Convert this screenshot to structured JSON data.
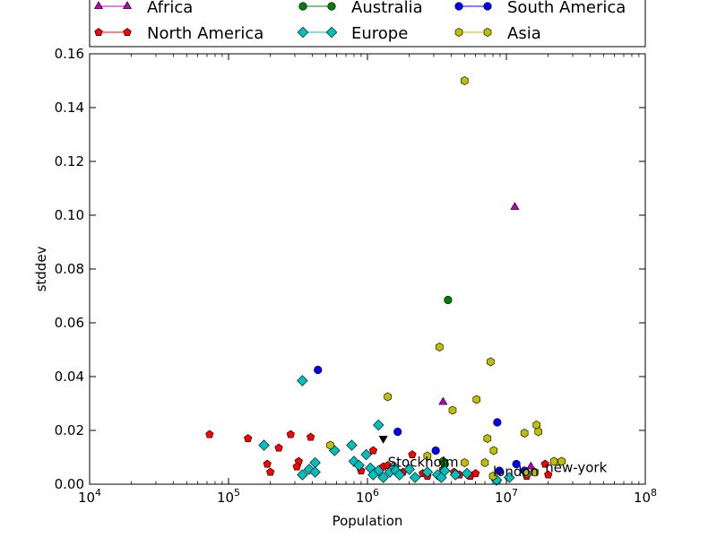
{
  "chart_data": {
    "type": "scatter",
    "xscale": "log",
    "xlabel": "Population",
    "ylabel": "stddev",
    "xlim": [
      10000,
      100000000
    ],
    "ylim": [
      0,
      0.16
    ],
    "xticks": [
      {
        "value": 10000,
        "base": "10",
        "exp": "4"
      },
      {
        "value": 100000,
        "base": "10",
        "exp": "5"
      },
      {
        "value": 1000000,
        "base": "10",
        "exp": "6"
      },
      {
        "value": 10000000,
        "base": "10",
        "exp": "7"
      },
      {
        "value": 100000000,
        "base": "10",
        "exp": "8"
      }
    ],
    "yticks": [
      "0.00",
      "0.02",
      "0.04",
      "0.06",
      "0.08",
      "0.10",
      "0.12",
      "0.14",
      "0.16"
    ],
    "legend_position": "top",
    "legend": [
      {
        "name": "Africa",
        "color": "#bf00bf",
        "marker": "triangle"
      },
      {
        "name": "North America",
        "color": "#ff0000",
        "marker": "pentagon"
      },
      {
        "name": "Australia",
        "color": "#008000",
        "marker": "circle"
      },
      {
        "name": "Europe",
        "color": "#00bfbf",
        "marker": "diamond"
      },
      {
        "name": "South America",
        "color": "#0000ff",
        "marker": "circle"
      },
      {
        "name": "Asia",
        "color": "#bfbf00",
        "marker": "hexagon"
      }
    ],
    "series": [
      {
        "name": "Africa",
        "color": "#bf00bf",
        "marker": "triangle",
        "points": [
          [
            11500000,
            0.103
          ],
          [
            3500000,
            0.0305
          ],
          [
            15000000,
            0.0065
          ]
        ]
      },
      {
        "name": "North America",
        "color": "#ff0000",
        "marker": "pentagon",
        "points": [
          [
            73000,
            0.0185
          ],
          [
            138000,
            0.017
          ],
          [
            230000,
            0.0135
          ],
          [
            280000,
            0.0185
          ],
          [
            390000,
            0.0175
          ],
          [
            190000,
            0.0075
          ],
          [
            200000,
            0.0045
          ],
          [
            320000,
            0.0085
          ],
          [
            310000,
            0.0065
          ],
          [
            900000,
            0.005
          ],
          [
            1100000,
            0.0125
          ],
          [
            1300000,
            0.0065
          ],
          [
            1400000,
            0.007
          ],
          [
            1800000,
            0.0045
          ],
          [
            2100000,
            0.011
          ],
          [
            2500000,
            0.004
          ],
          [
            2700000,
            0.003
          ],
          [
            3500000,
            0.0055
          ],
          [
            4200000,
            0.0045
          ],
          [
            4600000,
            0.0035
          ],
          [
            5500000,
            0.003
          ],
          [
            6000000,
            0.004
          ],
          [
            14000000,
            0.003
          ],
          [
            19000000,
            0.0075
          ],
          [
            20000000,
            0.0035
          ]
        ]
      },
      {
        "name": "Australia",
        "color": "#008000",
        "marker": "circle",
        "points": [
          [
            3800000,
            0.0685
          ],
          [
            3500000,
            0.0085
          ],
          [
            3600000,
            0.0075
          ]
        ]
      },
      {
        "name": "Europe",
        "color": "#00bfbf",
        "marker": "diamond",
        "points": [
          [
            340000,
            0.0385
          ],
          [
            180000,
            0.0145
          ],
          [
            580000,
            0.0125
          ],
          [
            770000,
            0.0145
          ],
          [
            1200000,
            0.022
          ],
          [
            980000,
            0.011
          ],
          [
            420000,
            0.008
          ],
          [
            380000,
            0.0055
          ],
          [
            420000,
            0.0045
          ],
          [
            340000,
            0.0035
          ],
          [
            800000,
            0.0085
          ],
          [
            870000,
            0.007
          ],
          [
            1050000,
            0.006
          ],
          [
            1200000,
            0.005
          ],
          [
            1100000,
            0.0035
          ],
          [
            1300000,
            0.0025
          ],
          [
            1450000,
            0.0045
          ],
          [
            1550000,
            0.0065
          ],
          [
            1600000,
            0.005
          ],
          [
            1700000,
            0.0035
          ],
          [
            2000000,
            0.0055
          ],
          [
            2200000,
            0.0025
          ],
          [
            2700000,
            0.0045
          ],
          [
            3200000,
            0.0035
          ],
          [
            3400000,
            0.0025
          ],
          [
            3600000,
            0.005
          ],
          [
            4300000,
            0.0035
          ],
          [
            5200000,
            0.004
          ],
          [
            8500000,
            0.0015
          ],
          [
            10500000,
            0.0025
          ]
        ]
      },
      {
        "name": "South America",
        "color": "#0000ff",
        "marker": "circle",
        "points": [
          [
            440000,
            0.0425
          ],
          [
            1650000,
            0.0195
          ],
          [
            3100000,
            0.0125
          ],
          [
            8600000,
            0.023
          ],
          [
            8900000,
            0.005
          ],
          [
            11800000,
            0.0075
          ],
          [
            13500000,
            0.005
          ]
        ]
      },
      {
        "name": "Asia",
        "color": "#bfbf00",
        "marker": "hexagon",
        "points": [
          [
            5000000,
            0.15
          ],
          [
            3300000,
            0.051
          ],
          [
            7700000,
            0.0455
          ],
          [
            1400000,
            0.0325
          ],
          [
            6100000,
            0.0315
          ],
          [
            4100000,
            0.0275
          ],
          [
            7300000,
            0.017
          ],
          [
            8100000,
            0.0125
          ],
          [
            13500000,
            0.019
          ],
          [
            16500000,
            0.022
          ],
          [
            17000000,
            0.0195
          ],
          [
            540000,
            0.0145
          ],
          [
            2700000,
            0.0105
          ],
          [
            5000000,
            0.008
          ],
          [
            7000000,
            0.008
          ],
          [
            22000000,
            0.0085
          ],
          [
            25000000,
            0.0085
          ],
          [
            14000000,
            0.004
          ],
          [
            16000000,
            0.0045
          ],
          [
            8000000,
            0.003
          ]
        ]
      },
      {
        "name": "",
        "color": "#000000",
        "marker": "triangle-down",
        "points": [
          [
            1300000,
            0.017
          ]
        ]
      }
    ],
    "annotations": [
      {
        "text": "Stockholm",
        "x": 1400000,
        "y": 0.0065
      },
      {
        "text": "london",
        "x": 8000000,
        "y": 0.003
      },
      {
        "text": "new-york",
        "x": 19000000,
        "y": 0.0045
      }
    ]
  }
}
